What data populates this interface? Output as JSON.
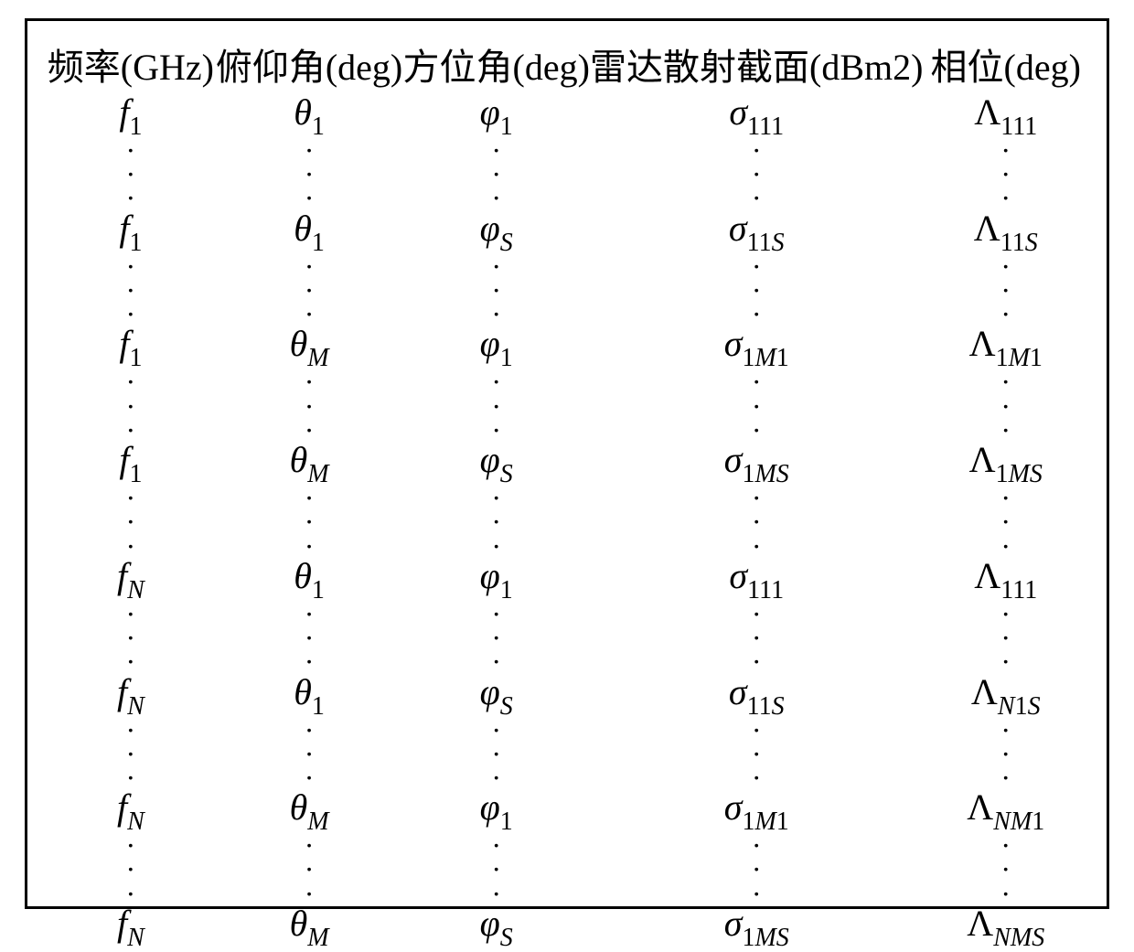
{
  "table": {
    "border_color": "#000000",
    "border_width": 3,
    "background_color": "#ffffff",
    "text_color": "#000000",
    "header_fontsize": 40,
    "cell_fontsize": 40,
    "subscript_fontsize": 28,
    "font_family": "Times New Roman",
    "columns": [
      {
        "label": "频率(GHz)",
        "width_pct": 17
      },
      {
        "label": "俯仰角(deg)",
        "width_pct": 18
      },
      {
        "label": "方位角(deg)",
        "width_pct": 18
      },
      {
        "label": "雷达散射截面(dBm2)",
        "width_pct": 28
      },
      {
        "label": "相位(deg)",
        "width_pct": 19
      }
    ],
    "symbol_bases": {
      "frequency": "f",
      "elevation": "θ",
      "azimuth": "φ",
      "rcs": "σ",
      "phase": "Λ"
    },
    "index_symbols": {
      "N": "N",
      "M": "M",
      "S": "S"
    },
    "rows": [
      {
        "type": "data",
        "f_sub": "1",
        "f_sub_italic": false,
        "th_sub": "1",
        "th_sub_italic": false,
        "ph_sub": "1",
        "ph_sub_italic": false,
        "sig_sub": "111",
        "lam_sub": "111"
      },
      {
        "type": "vdots"
      },
      {
        "type": "data",
        "f_sub": "1",
        "f_sub_italic": false,
        "th_sub": "1",
        "th_sub_italic": false,
        "ph_sub": "S",
        "ph_sub_italic": true,
        "sig_sub": "11S",
        "lam_sub": "11S"
      },
      {
        "type": "vdots"
      },
      {
        "type": "data",
        "f_sub": "1",
        "f_sub_italic": false,
        "th_sub": "M",
        "th_sub_italic": true,
        "ph_sub": "1",
        "ph_sub_italic": false,
        "sig_sub": "1M1",
        "lam_sub": "1M1"
      },
      {
        "type": "vdots"
      },
      {
        "type": "data",
        "f_sub": "1",
        "f_sub_italic": false,
        "th_sub": "M",
        "th_sub_italic": true,
        "ph_sub": "S",
        "ph_sub_italic": true,
        "sig_sub": "1MS",
        "lam_sub": "1MS"
      },
      {
        "type": "vdots"
      },
      {
        "type": "data",
        "f_sub": "N",
        "f_sub_italic": true,
        "th_sub": "1",
        "th_sub_italic": false,
        "ph_sub": "1",
        "ph_sub_italic": false,
        "sig_sub": "111",
        "lam_sub": "111"
      },
      {
        "type": "vdots"
      },
      {
        "type": "data",
        "f_sub": "N",
        "f_sub_italic": true,
        "th_sub": "1",
        "th_sub_italic": false,
        "ph_sub": "S",
        "ph_sub_italic": true,
        "sig_sub": "11S",
        "lam_sub": "N1S"
      },
      {
        "type": "vdots"
      },
      {
        "type": "data",
        "f_sub": "N",
        "f_sub_italic": true,
        "th_sub": "M",
        "th_sub_italic": true,
        "ph_sub": "1",
        "ph_sub_italic": false,
        "sig_sub": "1M1",
        "lam_sub": "NM1"
      },
      {
        "type": "vdots"
      },
      {
        "type": "data",
        "f_sub": "N",
        "f_sub_italic": true,
        "th_sub": "M",
        "th_sub_italic": true,
        "ph_sub": "S",
        "ph_sub_italic": true,
        "sig_sub": "1MS",
        "lam_sub": "NMS"
      }
    ],
    "vdots_glyph": "⋮"
  }
}
